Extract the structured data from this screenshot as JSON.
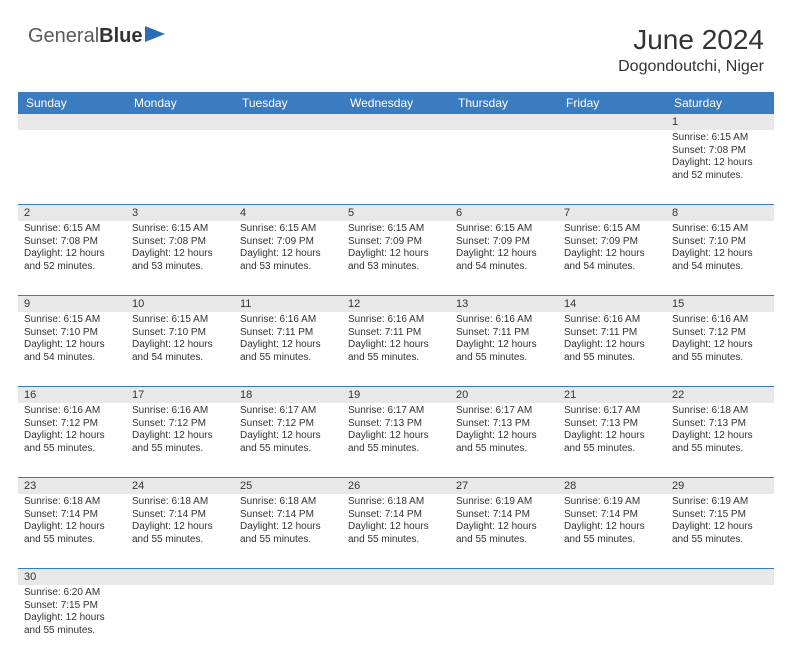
{
  "logo": {
    "part1": "General",
    "part2": "Blue"
  },
  "title": "June 2024",
  "location": "Dogondoutchi, Niger",
  "header_bg": "#3b7bbf",
  "number_bg": "#e8e8e8",
  "border_color": "#3b7bbf",
  "days": [
    "Sunday",
    "Monday",
    "Tuesday",
    "Wednesday",
    "Thursday",
    "Friday",
    "Saturday"
  ],
  "weeks": [
    {
      "nums": [
        "",
        "",
        "",
        "",
        "",
        "",
        "1"
      ],
      "cells": [
        null,
        null,
        null,
        null,
        null,
        null,
        {
          "sr": "Sunrise: 6:15 AM",
          "ss": "Sunset: 7:08 PM",
          "dl1": "Daylight: 12 hours",
          "dl2": "and 52 minutes."
        }
      ]
    },
    {
      "nums": [
        "2",
        "3",
        "4",
        "5",
        "6",
        "7",
        "8"
      ],
      "cells": [
        {
          "sr": "Sunrise: 6:15 AM",
          "ss": "Sunset: 7:08 PM",
          "dl1": "Daylight: 12 hours",
          "dl2": "and 52 minutes."
        },
        {
          "sr": "Sunrise: 6:15 AM",
          "ss": "Sunset: 7:08 PM",
          "dl1": "Daylight: 12 hours",
          "dl2": "and 53 minutes."
        },
        {
          "sr": "Sunrise: 6:15 AM",
          "ss": "Sunset: 7:09 PM",
          "dl1": "Daylight: 12 hours",
          "dl2": "and 53 minutes."
        },
        {
          "sr": "Sunrise: 6:15 AM",
          "ss": "Sunset: 7:09 PM",
          "dl1": "Daylight: 12 hours",
          "dl2": "and 53 minutes."
        },
        {
          "sr": "Sunrise: 6:15 AM",
          "ss": "Sunset: 7:09 PM",
          "dl1": "Daylight: 12 hours",
          "dl2": "and 54 minutes."
        },
        {
          "sr": "Sunrise: 6:15 AM",
          "ss": "Sunset: 7:09 PM",
          "dl1": "Daylight: 12 hours",
          "dl2": "and 54 minutes."
        },
        {
          "sr": "Sunrise: 6:15 AM",
          "ss": "Sunset: 7:10 PM",
          "dl1": "Daylight: 12 hours",
          "dl2": "and 54 minutes."
        }
      ]
    },
    {
      "nums": [
        "9",
        "10",
        "11",
        "12",
        "13",
        "14",
        "15"
      ],
      "cells": [
        {
          "sr": "Sunrise: 6:15 AM",
          "ss": "Sunset: 7:10 PM",
          "dl1": "Daylight: 12 hours",
          "dl2": "and 54 minutes."
        },
        {
          "sr": "Sunrise: 6:15 AM",
          "ss": "Sunset: 7:10 PM",
          "dl1": "Daylight: 12 hours",
          "dl2": "and 54 minutes."
        },
        {
          "sr": "Sunrise: 6:16 AM",
          "ss": "Sunset: 7:11 PM",
          "dl1": "Daylight: 12 hours",
          "dl2": "and 55 minutes."
        },
        {
          "sr": "Sunrise: 6:16 AM",
          "ss": "Sunset: 7:11 PM",
          "dl1": "Daylight: 12 hours",
          "dl2": "and 55 minutes."
        },
        {
          "sr": "Sunrise: 6:16 AM",
          "ss": "Sunset: 7:11 PM",
          "dl1": "Daylight: 12 hours",
          "dl2": "and 55 minutes."
        },
        {
          "sr": "Sunrise: 6:16 AM",
          "ss": "Sunset: 7:11 PM",
          "dl1": "Daylight: 12 hours",
          "dl2": "and 55 minutes."
        },
        {
          "sr": "Sunrise: 6:16 AM",
          "ss": "Sunset: 7:12 PM",
          "dl1": "Daylight: 12 hours",
          "dl2": "and 55 minutes."
        }
      ]
    },
    {
      "nums": [
        "16",
        "17",
        "18",
        "19",
        "20",
        "21",
        "22"
      ],
      "cells": [
        {
          "sr": "Sunrise: 6:16 AM",
          "ss": "Sunset: 7:12 PM",
          "dl1": "Daylight: 12 hours",
          "dl2": "and 55 minutes."
        },
        {
          "sr": "Sunrise: 6:16 AM",
          "ss": "Sunset: 7:12 PM",
          "dl1": "Daylight: 12 hours",
          "dl2": "and 55 minutes."
        },
        {
          "sr": "Sunrise: 6:17 AM",
          "ss": "Sunset: 7:12 PM",
          "dl1": "Daylight: 12 hours",
          "dl2": "and 55 minutes."
        },
        {
          "sr": "Sunrise: 6:17 AM",
          "ss": "Sunset: 7:13 PM",
          "dl1": "Daylight: 12 hours",
          "dl2": "and 55 minutes."
        },
        {
          "sr": "Sunrise: 6:17 AM",
          "ss": "Sunset: 7:13 PM",
          "dl1": "Daylight: 12 hours",
          "dl2": "and 55 minutes."
        },
        {
          "sr": "Sunrise: 6:17 AM",
          "ss": "Sunset: 7:13 PM",
          "dl1": "Daylight: 12 hours",
          "dl2": "and 55 minutes."
        },
        {
          "sr": "Sunrise: 6:18 AM",
          "ss": "Sunset: 7:13 PM",
          "dl1": "Daylight: 12 hours",
          "dl2": "and 55 minutes."
        }
      ]
    },
    {
      "nums": [
        "23",
        "24",
        "25",
        "26",
        "27",
        "28",
        "29"
      ],
      "cells": [
        {
          "sr": "Sunrise: 6:18 AM",
          "ss": "Sunset: 7:14 PM",
          "dl1": "Daylight: 12 hours",
          "dl2": "and 55 minutes."
        },
        {
          "sr": "Sunrise: 6:18 AM",
          "ss": "Sunset: 7:14 PM",
          "dl1": "Daylight: 12 hours",
          "dl2": "and 55 minutes."
        },
        {
          "sr": "Sunrise: 6:18 AM",
          "ss": "Sunset: 7:14 PM",
          "dl1": "Daylight: 12 hours",
          "dl2": "and 55 minutes."
        },
        {
          "sr": "Sunrise: 6:18 AM",
          "ss": "Sunset: 7:14 PM",
          "dl1": "Daylight: 12 hours",
          "dl2": "and 55 minutes."
        },
        {
          "sr": "Sunrise: 6:19 AM",
          "ss": "Sunset: 7:14 PM",
          "dl1": "Daylight: 12 hours",
          "dl2": "and 55 minutes."
        },
        {
          "sr": "Sunrise: 6:19 AM",
          "ss": "Sunset: 7:14 PM",
          "dl1": "Daylight: 12 hours",
          "dl2": "and 55 minutes."
        },
        {
          "sr": "Sunrise: 6:19 AM",
          "ss": "Sunset: 7:15 PM",
          "dl1": "Daylight: 12 hours",
          "dl2": "and 55 minutes."
        }
      ]
    },
    {
      "nums": [
        "30",
        "",
        "",
        "",
        "",
        "",
        ""
      ],
      "cells": [
        {
          "sr": "Sunrise: 6:20 AM",
          "ss": "Sunset: 7:15 PM",
          "dl1": "Daylight: 12 hours",
          "dl2": "and 55 minutes."
        },
        null,
        null,
        null,
        null,
        null,
        null
      ]
    }
  ]
}
